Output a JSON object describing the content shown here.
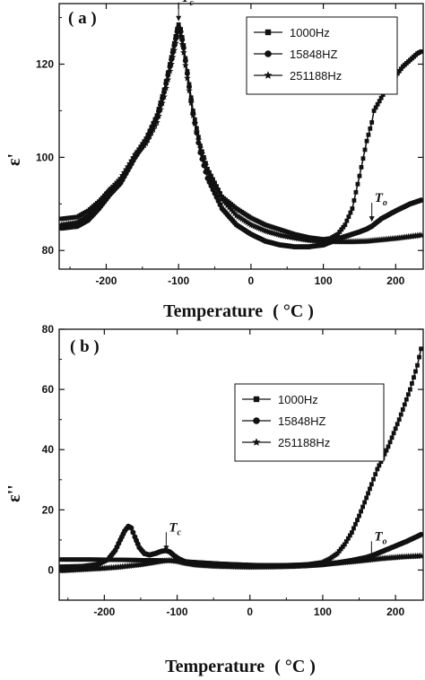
{
  "chart_data": [
    {
      "type": "scatter",
      "panel_label": "( a )",
      "xlabel": "Temperature",
      "xlabel_unit": "( °C )",
      "ylabel": "ε'",
      "xlim": [
        -265,
        238
      ],
      "ylim": [
        76,
        133
      ],
      "xticks": [
        -200,
        -100,
        0,
        100,
        200
      ],
      "yticks": [
        80,
        100,
        120
      ],
      "xtick_labels": [
        "-200",
        "-100",
        "0",
        "100",
        "200"
      ],
      "ytick_labels": [
        "80",
        "100",
        "120"
      ],
      "legend_position": "top-right",
      "annotations": [
        {
          "label": "T",
          "sub": "c",
          "x": -100,
          "y": 129
        },
        {
          "label": "T",
          "sub": "o",
          "x": 167,
          "y": 86
        }
      ],
      "series": [
        {
          "name": "1000Hz",
          "marker": "square",
          "x": [
            -262,
            -240,
            -225,
            -210,
            -195,
            -180,
            -160,
            -145,
            -130,
            -120,
            -112,
            -106,
            -102,
            -100,
            -97,
            -93,
            -88,
            -80,
            -70,
            -60,
            -40,
            -20,
            0,
            20,
            40,
            60,
            80,
            100,
            110,
            120,
            130,
            140,
            150,
            160,
            167,
            170,
            190,
            210,
            230,
            235
          ],
          "y": [
            86.8,
            87.2,
            88.5,
            90.5,
            93.0,
            95.0,
            100.5,
            104.0,
            109.0,
            114.5,
            120.0,
            124.5,
            127.5,
            128.5,
            127.5,
            124.0,
            118.5,
            110.0,
            102.5,
            97.5,
            91.5,
            89.0,
            87.0,
            85.5,
            84.5,
            83.5,
            82.8,
            82.4,
            82.6,
            83.5,
            85.5,
            89.0,
            96.0,
            103.5,
            107.5,
            110.0,
            115.5,
            119.5,
            122.3,
            122.7
          ]
        },
        {
          "name": "15848HZ",
          "marker": "circle",
          "x": [
            -262,
            -240,
            -225,
            -210,
            -195,
            -180,
            -160,
            -145,
            -130,
            -120,
            -112,
            -106,
            -102,
            -100,
            -97,
            -93,
            -88,
            -80,
            -70,
            -60,
            -40,
            -20,
            0,
            20,
            40,
            60,
            80,
            100,
            110,
            120,
            130,
            140,
            150,
            160,
            167,
            180,
            200,
            220,
            235
          ],
          "y": [
            84.8,
            85.2,
            86.5,
            89.0,
            92.0,
            94.5,
            100.0,
            103.5,
            108.5,
            114.0,
            119.5,
            124.0,
            127.0,
            128.0,
            127.0,
            123.5,
            118.0,
            109.5,
            101.0,
            95.5,
            89.0,
            85.5,
            83.5,
            82.0,
            81.2,
            80.8,
            80.8,
            81.2,
            81.8,
            82.5,
            83.0,
            83.5,
            84.0,
            84.6,
            85.2,
            86.8,
            88.5,
            90.0,
            90.8
          ]
        },
        {
          "name": "251188Hz",
          "marker": "star",
          "x": [
            -262,
            -240,
            -225,
            -210,
            -195,
            -180,
            -160,
            -145,
            -130,
            -120,
            -112,
            -106,
            -102,
            -100,
            -97,
            -93,
            -88,
            -80,
            -70,
            -60,
            -40,
            -20,
            0,
            20,
            40,
            60,
            80,
            100,
            120,
            140,
            160,
            180,
            200,
            220,
            235
          ],
          "y": [
            85.5,
            86.0,
            87.5,
            90.0,
            93.0,
            95.5,
            100.5,
            103.0,
            107.5,
            113.0,
            118.5,
            123.0,
            126.0,
            127.0,
            126.0,
            122.5,
            117.0,
            109.0,
            102.0,
            97.0,
            91.0,
            87.5,
            85.5,
            84.2,
            83.3,
            82.7,
            82.2,
            82.0,
            81.9,
            81.9,
            82.0,
            82.3,
            82.6,
            83.0,
            83.3
          ]
        }
      ]
    },
    {
      "type": "scatter",
      "panel_label": "( b )",
      "xlabel": "Temperature",
      "xlabel_unit": "( °C )",
      "ylabel": "ε''",
      "xlim": [
        -262,
        238
      ],
      "ylim": [
        -10,
        80
      ],
      "xticks": [
        -200,
        -100,
        0,
        100,
        200
      ],
      "yticks": [
        0,
        20,
        40,
        60,
        80
      ],
      "xtick_labels": [
        "-200",
        "-100",
        "0",
        "100",
        "200"
      ],
      "ytick_labels": [
        "0",
        "20",
        "40",
        "60",
        "80"
      ],
      "legend_position": "top-right",
      "annotations": [
        {
          "label": "T",
          "sub": "c",
          "x": -115,
          "y": 6
        },
        {
          "label": "T",
          "sub": "o",
          "x": 167,
          "y": 3
        }
      ],
      "series": [
        {
          "name": "1000Hz",
          "marker": "square",
          "x": [
            -260,
            -220,
            -180,
            -150,
            -120,
            -100,
            -80,
            -60,
            -40,
            -20,
            0,
            20,
            40,
            60,
            80,
            100,
            110,
            120,
            130,
            140,
            150,
            160,
            167,
            175,
            190,
            205,
            220,
            230,
            235
          ],
          "y": [
            3.5,
            3.5,
            3.4,
            3.3,
            3.2,
            3.0,
            2.7,
            2.4,
            2.1,
            1.9,
            1.7,
            1.6,
            1.6,
            1.7,
            1.9,
            2.6,
            3.8,
            5.5,
            8.5,
            12.5,
            18.0,
            24.0,
            28.5,
            33.5,
            41.0,
            50.0,
            60.0,
            68.0,
            73.5
          ]
        },
        {
          "name": "15848HZ",
          "marker": "circle",
          "x": [
            -260,
            -230,
            -210,
            -195,
            -185,
            -178,
            -172,
            -167,
            -163,
            -158,
            -152,
            -145,
            -138,
            -130,
            -122,
            -115,
            -110,
            -104,
            -98,
            -90,
            -80,
            -60,
            -40,
            -20,
            0,
            20,
            40,
            60,
            80,
            100,
            120,
            140,
            160,
            170,
            185,
            200,
            215,
            230,
            235
          ],
          "y": [
            1.0,
            1.2,
            1.8,
            3.5,
            6.5,
            10.0,
            13.0,
            14.5,
            14.0,
            11.0,
            7.5,
            5.5,
            5.0,
            5.5,
            6.2,
            6.5,
            6.0,
            4.8,
            3.8,
            2.9,
            2.3,
            1.8,
            1.5,
            1.3,
            1.2,
            1.2,
            1.2,
            1.3,
            1.5,
            1.8,
            2.4,
            3.2,
            4.2,
            5.0,
            6.5,
            8.0,
            9.5,
            11.2,
            11.8
          ]
        },
        {
          "name": "251188Hz",
          "marker": "star",
          "x": [
            -260,
            -230,
            -200,
            -180,
            -165,
            -150,
            -135,
            -120,
            -110,
            -100,
            -90,
            -75,
            -50,
            -20,
            0,
            30,
            60,
            90,
            120,
            150,
            180,
            210,
            235
          ],
          "y": [
            -0.2,
            0.2,
            0.6,
            1.0,
            1.4,
            1.8,
            2.4,
            3.0,
            3.2,
            2.9,
            2.3,
            1.7,
            1.3,
            1.1,
            1.0,
            1.1,
            1.3,
            1.7,
            2.3,
            3.0,
            3.8,
            4.4,
            4.7
          ]
        }
      ]
    }
  ]
}
